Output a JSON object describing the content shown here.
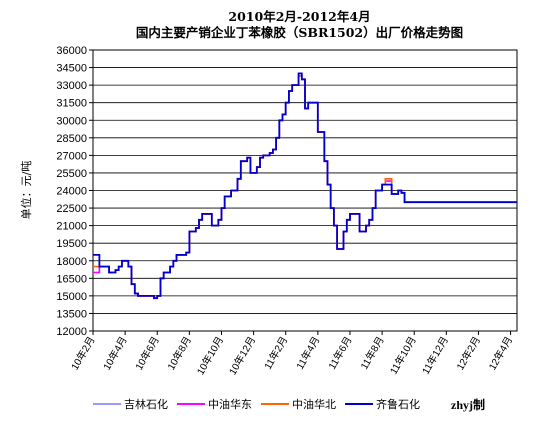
{
  "chart_data": {
    "type": "line",
    "title": "2010年2月-2012年4月",
    "subtitle": "国内主要产销企业丁苯橡胶（SBR1502）出厂价格走势图",
    "xlabel": "",
    "ylabel": "单位：元/吨",
    "ylim": [
      12000,
      36000
    ],
    "y_ticks": [
      12000,
      13500,
      15000,
      16500,
      18000,
      19500,
      21000,
      22500,
      24000,
      25500,
      27000,
      28500,
      30000,
      31500,
      33000,
      34500,
      36000
    ],
    "x_tick_labels": [
      "10年2月",
      "10年4月",
      "10年6月",
      "10年8月",
      "10年10月",
      "10年12月",
      "11年2月",
      "11年4月",
      "11年6月",
      "11年8月",
      "11年10月",
      "11年12月",
      "12年2月",
      "12年4月"
    ],
    "grid": true,
    "legend_position": "bottom",
    "credit": "zhyj制",
    "x": [
      0.0,
      0.2,
      0.4,
      0.6,
      0.8,
      1.0,
      1.2,
      1.4,
      1.6,
      1.8,
      2.0,
      2.2,
      2.4,
      2.6,
      2.8,
      3.0,
      3.2,
      3.4,
      3.6,
      3.8,
      4.0,
      4.2,
      4.4,
      4.6,
      4.8,
      5.0,
      5.2,
      5.4,
      5.6,
      5.8,
      6.0,
      6.2,
      6.4,
      6.6,
      6.8,
      7.0,
      7.2,
      7.4,
      7.6,
      7.8,
      8.0,
      8.2,
      8.4,
      8.6,
      8.8,
      9.0,
      9.2,
      9.4,
      9.6,
      9.8,
      10.0,
      10.2,
      10.4,
      10.6,
      10.8,
      11.0,
      11.2,
      11.4,
      11.6,
      11.8,
      12.0,
      12.2,
      12.4,
      12.6,
      12.8,
      13.0,
      13.2,
      13.4,
      13.6,
      13.8,
      14.0,
      14.2,
      14.4,
      14.6,
      14.8,
      15.0,
      15.2,
      15.4,
      15.6,
      15.8,
      16.0,
      16.2,
      16.4,
      16.6,
      16.8,
      17.0,
      17.2,
      17.4,
      17.6,
      17.8,
      18.0,
      18.2,
      18.4,
      18.6,
      18.8,
      19.0,
      19.2,
      19.4,
      19.6,
      19.8,
      20.0,
      20.2,
      20.4,
      20.6,
      20.8,
      21.0,
      21.2,
      21.4,
      21.6,
      21.8,
      22.0,
      22.2,
      22.4,
      22.6,
      22.8,
      23.0,
      23.2,
      23.4,
      23.6,
      23.8,
      24.0,
      24.2,
      24.4,
      24.6,
      24.8,
      25.0,
      25.2,
      25.4,
      25.6,
      25.8,
      26.0,
      26.2,
      26.4
    ],
    "series": [
      {
        "name": "吉林石化",
        "color": "#9999ff",
        "values": [
          17000,
          17000,
          17500,
          17500,
          17500,
          17000,
          17000,
          17200,
          17500,
          18000,
          18000,
          17500,
          16000,
          15200,
          15000,
          15000,
          15000,
          15000,
          15000,
          14800,
          15000,
          16500,
          17000,
          17000,
          17500,
          18000,
          18500,
          18500,
          18500,
          18700,
          20500,
          20500,
          20800,
          21500,
          22000,
          22000,
          22000,
          21000,
          21000,
          21500,
          22500,
          23500,
          23500,
          24000,
          24000,
          25000,
          26500,
          26500,
          26800,
          25500,
          25500,
          26000,
          26800,
          27000,
          27000,
          27200,
          27500,
          28500,
          30000,
          30500,
          31500,
          32500,
          33000,
          33000,
          33800,
          33500,
          31000,
          31500,
          31500,
          31500,
          29000,
          29000,
          26500,
          24500,
          22500,
          21000,
          19000,
          19000,
          20500,
          21500,
          22000,
          22000,
          22000,
          20500,
          20500,
          21000,
          21500,
          22500,
          24000,
          24000,
          24500,
          24500,
          24500,
          23700,
          23700,
          24000,
          23800,
          23000,
          23000,
          23000,
          23000,
          23000,
          23000,
          23000,
          23000,
          23000,
          23000,
          23000,
          23000,
          23000,
          23000,
          23000,
          23000,
          23000,
          23000,
          23000,
          23000,
          23000,
          23000,
          23000,
          23000,
          23000,
          23000,
          23000,
          23000,
          23000,
          23000,
          23000,
          23000,
          23000,
          23000,
          23000,
          23000
        ]
      },
      {
        "name": "中油华东",
        "color": "#ff00ff",
        "values": [
          17000,
          17000,
          17500,
          17500,
          17500,
          17000,
          17000,
          17200,
          17500,
          18000,
          18000,
          17500,
          16000,
          15200,
          15000,
          15000,
          15000,
          15000,
          15000,
          14800,
          15000,
          16500,
          17000,
          17000,
          17500,
          18000,
          18500,
          18500,
          18500,
          18700,
          20500,
          20500,
          20800,
          21500,
          22000,
          22000,
          22000,
          21000,
          21000,
          21500,
          22500,
          23500,
          23500,
          24000,
          24000,
          25000,
          26500,
          26500,
          26800,
          25500,
          25500,
          26000,
          26800,
          27000,
          27000,
          27200,
          27500,
          28500,
          30000,
          30500,
          31500,
          32500,
          33000,
          33000,
          33800,
          33500,
          31000,
          31500,
          31500,
          31500,
          29000,
          29000,
          26500,
          24500,
          22500,
          21000,
          19000,
          19000,
          20500,
          21500,
          22000,
          22000,
          22000,
          20500,
          20500,
          21000,
          21500,
          22500,
          24000,
          24000,
          24500,
          24800,
          24800,
          23700,
          23700,
          24000,
          23800,
          23000,
          23000,
          23000,
          23000,
          23000,
          23000,
          23000,
          23000,
          23000,
          23000,
          23000,
          23000,
          23000,
          23000,
          23000,
          23000,
          23000,
          23000,
          23000,
          23000,
          23000,
          23000,
          23000,
          23000,
          23000,
          23000,
          23000,
          23000,
          23000,
          23000,
          23000,
          23000,
          23000,
          23000,
          23000,
          23000
        ]
      },
      {
        "name": "中油华北",
        "color": "#ff6600",
        "values": [
          17500,
          17500,
          17500,
          17500,
          17500,
          17000,
          17000,
          17200,
          17500,
          18000,
          18000,
          17500,
          16000,
          15200,
          15000,
          15000,
          15000,
          15000,
          15000,
          14800,
          15000,
          16500,
          17000,
          17000,
          17500,
          18000,
          18500,
          18500,
          18500,
          18700,
          20500,
          20500,
          20800,
          21500,
          22000,
          22000,
          22000,
          21000,
          21000,
          21500,
          22500,
          23500,
          23500,
          24000,
          24000,
          25000,
          26500,
          26500,
          26800,
          25500,
          25500,
          26000,
          26800,
          27000,
          27000,
          27200,
          27500,
          28500,
          30000,
          30500,
          31500,
          32500,
          33000,
          33000,
          33800,
          33500,
          31000,
          31500,
          31500,
          31500,
          29000,
          29000,
          26500,
          24500,
          22500,
          21000,
          19000,
          19000,
          20500,
          21500,
          22000,
          22000,
          22000,
          20500,
          20500,
          21000,
          21500,
          22500,
          24000,
          24000,
          24500,
          25000,
          25000,
          23700,
          23700,
          24000,
          23800,
          23000,
          23000,
          23000,
          23000,
          23000,
          23000,
          23000,
          23000,
          23000,
          23000,
          23000,
          23000,
          23000,
          23000,
          23000,
          23000,
          23000,
          23000,
          23000,
          23000,
          23000,
          23000,
          23000,
          23000,
          23000,
          23000,
          23000,
          23000,
          23000,
          23000,
          23000,
          23000,
          23000,
          23000,
          23000,
          23000
        ]
      },
      {
        "name": "齐鲁石化",
        "color": "#0000cc",
        "values": [
          18500,
          18500,
          17500,
          17500,
          17500,
          17000,
          17000,
          17200,
          17500,
          18000,
          18000,
          17500,
          16000,
          15200,
          15000,
          15000,
          15000,
          15000,
          15000,
          14800,
          15000,
          16500,
          17000,
          17000,
          17500,
          18000,
          18500,
          18500,
          18500,
          18700,
          20500,
          20500,
          20800,
          21500,
          22000,
          22000,
          22000,
          21000,
          21000,
          21500,
          22500,
          23500,
          23500,
          24000,
          24000,
          25000,
          26500,
          26500,
          26800,
          25500,
          25500,
          26000,
          26800,
          27000,
          27000,
          27200,
          27500,
          28500,
          30000,
          30500,
          31500,
          32500,
          33000,
          33000,
          34000,
          33500,
          31000,
          31500,
          31500,
          31500,
          29000,
          29000,
          26500,
          24500,
          22500,
          21000,
          19000,
          19000,
          20500,
          21500,
          22000,
          22000,
          22000,
          20500,
          20500,
          21000,
          21500,
          22500,
          24000,
          24000,
          24500,
          24500,
          24500,
          23700,
          23700,
          24000,
          23800,
          23000,
          23000,
          23000,
          23000,
          23000,
          23000,
          23000,
          23000,
          23000,
          23000,
          23000,
          23000,
          23000,
          23000,
          23000,
          23000,
          23000,
          23000,
          23000,
          23000,
          23000,
          23000,
          23000,
          23000,
          23000,
          23000,
          23000,
          23000,
          23000,
          23000,
          23000,
          23000,
          23000,
          23000,
          23000,
          23000
        ]
      }
    ]
  }
}
